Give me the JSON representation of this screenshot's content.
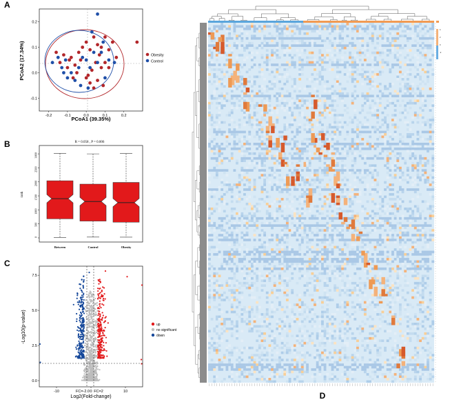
{
  "panel_labels": {
    "a": "A",
    "b": "B",
    "c": "C",
    "d": "D"
  },
  "colors": {
    "red": "#b2262a",
    "blue": "#1f4fa8",
    "box_red": "#e2191b",
    "gray": "#bdbdbd",
    "dark_blue": "#16489a",
    "heat_orange": "#f0a35c",
    "heat_blue": "#4a90d9"
  },
  "chart_data": [
    {
      "panel": "A",
      "type": "scatter",
      "xlabel": "PCoA1 (39.35%)",
      "ylabel": "PCoA2 (17.34%)",
      "xlim": [
        -0.25,
        0.3
      ],
      "ylim": [
        -0.15,
        0.25
      ],
      "x_ticks": [
        "-0.2",
        "-0.1",
        "0.0",
        "0.1",
        "0.2"
      ],
      "y_ticks": [
        "-0.1",
        "0.0",
        "0.1",
        "0.2"
      ],
      "legend": [
        "Obesity",
        "Control"
      ],
      "series": [
        {
          "name": "Obesity",
          "points": [
            [
              -0.16,
              0.08
            ],
            [
              -0.14,
              0.04
            ],
            [
              -0.12,
              0.07
            ],
            [
              -0.1,
              0.02
            ],
            [
              -0.08,
              0.06
            ],
            [
              -0.06,
              0.03
            ],
            [
              -0.04,
              0.08
            ],
            [
              -0.02,
              0.1
            ],
            [
              0.0,
              0.12
            ],
            [
              0.02,
              0.09
            ],
            [
              0.04,
              0.14
            ],
            [
              0.06,
              0.11
            ],
            [
              0.08,
              0.1
            ],
            [
              0.1,
              0.14
            ],
            [
              0.12,
              0.09
            ],
            [
              0.14,
              0.12
            ],
            [
              0.16,
              0.06
            ],
            [
              0.05,
              0.04
            ],
            [
              0.03,
              0.01
            ],
            [
              0.01,
              -0.01
            ],
            [
              0.0,
              -0.02
            ],
            [
              0.02,
              -0.04
            ],
            [
              0.04,
              -0.06
            ],
            [
              0.06,
              -0.03
            ],
            [
              0.08,
              0.02
            ],
            [
              0.1,
              0.04
            ],
            [
              -0.05,
              0.0
            ],
            [
              -0.07,
              -0.02
            ],
            [
              -0.09,
              0.05
            ],
            [
              0.12,
              0.02
            ],
            [
              0.27,
              0.12
            ],
            [
              0.09,
              -0.05
            ],
            [
              -0.03,
              0.05
            ],
            [
              0.07,
              0.07
            ]
          ]
        },
        {
          "name": "Control",
          "points": [
            [
              -0.18,
              0.04
            ],
            [
              -0.15,
              0.06
            ],
            [
              -0.13,
              0.02
            ],
            [
              -0.11,
              0.05
            ],
            [
              -0.1,
              -0.02
            ],
            [
              -0.08,
              0.0
            ],
            [
              -0.06,
              -0.03
            ],
            [
              -0.04,
              0.02
            ],
            [
              -0.02,
              0.06
            ],
            [
              0.0,
              0.05
            ],
            [
              0.02,
              0.02
            ],
            [
              0.04,
              0.08
            ],
            [
              0.06,
              0.04
            ],
            [
              0.08,
              0.08
            ],
            [
              0.1,
              -0.02
            ],
            [
              0.12,
              0.05
            ],
            [
              0.15,
              0.04
            ],
            [
              -0.03,
              -0.05
            ],
            [
              0.01,
              -0.06
            ],
            [
              0.06,
              0.23
            ],
            [
              -0.12,
              0.0
            ],
            [
              0.03,
              0.16
            ],
            [
              0.09,
              0.12
            ]
          ]
        }
      ]
    },
    {
      "panel": "B",
      "type": "box",
      "title": "R = 0.058 ,  P = 0.006",
      "ylabel": "rank",
      "categories": [
        "Between",
        "Control",
        "Obesity"
      ],
      "y_ticks": [
        "0",
        "500",
        "1000",
        "1500",
        "2000",
        "2500",
        "3000"
      ],
      "ylim": [
        0,
        3200
      ],
      "boxes": [
        {
          "name": "Between",
          "min": 10,
          "q1": 680,
          "median": 1400,
          "q3": 2040,
          "max": 3020
        },
        {
          "name": "Control",
          "min": 30,
          "q1": 600,
          "median": 1300,
          "q3": 1920,
          "max": 3000
        },
        {
          "name": "Obesity",
          "min": 25,
          "q1": 560,
          "median": 1260,
          "q3": 1980,
          "max": 3010
        }
      ]
    },
    {
      "panel": "C",
      "type": "scatter",
      "subtype": "volcano",
      "xlabel": "Log2(Fold-change)",
      "ylabel": "-Log10(p-value)",
      "xlim": [
        -15,
        15
      ],
      "ylim": [
        0,
        8
      ],
      "x_ticks": [
        "-10",
        "0",
        "10"
      ],
      "y_ticks": [
        "0.0",
        "2.5",
        "5.0",
        "7.5"
      ],
      "threshold_labels": [
        "FC=-2.0",
        "FC=2"
      ],
      "legend": [
        "up",
        "no significant",
        "down"
      ]
    },
    {
      "panel": "D",
      "type": "heatmap",
      "legend_values": [
        "4",
        "2",
        "0",
        "-2"
      ]
    }
  ]
}
